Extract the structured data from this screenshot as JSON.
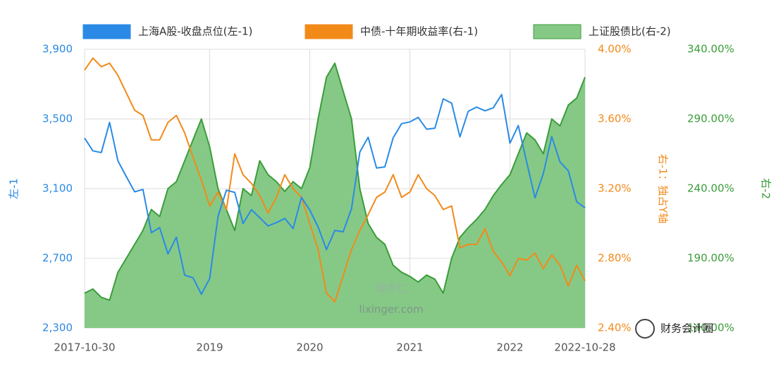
{
  "chart_data": {
    "type": "line",
    "categories": [
      "2017-10-30",
      null,
      null,
      null,
      null,
      null,
      null,
      null,
      null,
      null,
      null,
      null,
      null,
      null,
      null,
      "2019",
      null,
      null,
      null,
      null,
      null,
      null,
      null,
      null,
      null,
      null,
      null,
      "2020",
      null,
      null,
      null,
      null,
      null,
      null,
      null,
      null,
      null,
      null,
      null,
      "2021",
      null,
      null,
      null,
      null,
      null,
      null,
      null,
      null,
      null,
      null,
      null,
      "2022",
      null,
      null,
      null,
      null,
      null,
      null,
      null,
      null,
      "2022-10-28"
    ],
    "series": [
      {
        "name": "上证股债比(右-2)",
        "color": "#3a9d3a",
        "fill": "#86c986",
        "area": true,
        "axis": "y3",
        "values": [
          165,
          168,
          162,
          160,
          180,
          190,
          200,
          210,
          225,
          220,
          240,
          245,
          260,
          275,
          290,
          270,
          240,
          225,
          210,
          240,
          235,
          260,
          250,
          245,
          238,
          245,
          240,
          255,
          290,
          320,
          330,
          310,
          290,
          240,
          215,
          205,
          200,
          185,
          180,
          177,
          173,
          178,
          175,
          165,
          190,
          205,
          212,
          218,
          225,
          235,
          243,
          250,
          265,
          280,
          275,
          265,
          290,
          285,
          300,
          305,
          320
        ]
      },
      {
        "name": "中债-十年期收益率(右-1)",
        "color": "#f28a1a",
        "axis": "y2",
        "values": [
          3.88,
          3.95,
          3.9,
          3.92,
          3.85,
          3.75,
          3.65,
          3.62,
          3.48,
          3.48,
          3.58,
          3.62,
          3.52,
          3.38,
          3.25,
          3.1,
          3.18,
          3.08,
          3.4,
          3.28,
          3.23,
          3.16,
          3.06,
          3.15,
          3.28,
          3.2,
          3.15,
          3.0,
          2.85,
          2.6,
          2.55,
          2.7,
          2.85,
          2.96,
          3.05,
          3.15,
          3.18,
          3.28,
          3.15,
          3.18,
          3.28,
          3.2,
          3.16,
          3.08,
          3.1,
          2.86,
          2.88,
          2.88,
          2.97,
          2.84,
          2.78,
          2.7,
          2.8,
          2.79,
          2.83,
          2.74,
          2.82,
          2.76,
          2.64,
          2.76,
          2.67
        ]
      },
      {
        "name": "上海A股-收盘点位(左-1)",
        "color": "#2a8ae6",
        "axis": "y",
        "values": [
          3390,
          3317,
          3307,
          3480,
          3259,
          3169,
          3082,
          3095,
          2847,
          2876,
          2725,
          2821,
          2603,
          2588,
          2494,
          2584,
          2941,
          3091,
          3078,
          2899,
          2979,
          2933,
          2886,
          2905,
          2929,
          2871,
          3050,
          2977,
          2880,
          2750,
          2860,
          2852,
          2985,
          3310,
          3395,
          3218,
          3225,
          3392,
          3473,
          3483,
          3509,
          3441,
          3447,
          3615,
          3591,
          3397,
          3544,
          3568,
          3547,
          3564,
          3640,
          3361,
          3462,
          3252,
          3047,
          3186,
          3399,
          3253,
          3202,
          3024,
          2990
        ]
      }
    ],
    "legend_order": [
      2,
      1,
      0
    ],
    "ylim": [
      2300,
      3900
    ],
    "yticks": [
      {
        "value": 2300,
        "label": "2,300"
      },
      {
        "value": 2700,
        "label": "2,700"
      },
      {
        "value": 3100,
        "label": "3,100"
      },
      {
        "value": 3500,
        "label": "3,500"
      },
      {
        "value": 3900,
        "label": "3,900"
      }
    ],
    "y2lim": [
      2.4,
      4.0
    ],
    "y2ticks": [
      {
        "value": 2.4,
        "label": "2.40%"
      },
      {
        "value": 2.8,
        "label": "2.80%"
      },
      {
        "value": 3.2,
        "label": "3.20%"
      },
      {
        "value": 3.6,
        "label": "3.60%"
      },
      {
        "value": 4.0,
        "label": "4.00%"
      }
    ],
    "y3lim": [
      140,
      340
    ],
    "y3ticks": [
      {
        "value": 140,
        "label": "140.00%"
      },
      {
        "value": 190,
        "label": "190.00%"
      },
      {
        "value": 240,
        "label": "240.00%"
      },
      {
        "value": 290,
        "label": "290.00%"
      },
      {
        "value": 340,
        "label": "340.00%"
      }
    ],
    "ylabel": "左-1",
    "y2label": "右-1：独占Y轴",
    "y3label": "右-2",
    "grid": true,
    "annotations": [
      "理杏仁",
      "lixinger.com",
      "财务会计圈"
    ]
  }
}
